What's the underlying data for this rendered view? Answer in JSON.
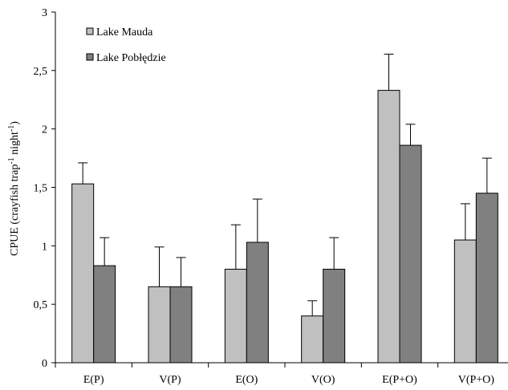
{
  "chart_data": {
    "type": "bar",
    "ylabel": {
      "prefix": "CPUE (crayfish trap",
      "sup1": "-1",
      "middle": " night",
      "sup2": "-1",
      "suffix": ")"
    },
    "ylim": [
      0,
      3
    ],
    "yticks": [
      0,
      0.5,
      1,
      1.5,
      2,
      2.5,
      3
    ],
    "ytick_labels": [
      "0",
      "0,5",
      "1",
      "1,5",
      "2",
      "2,5",
      "3"
    ],
    "categories": [
      "E(P)",
      "V(P)",
      "E(O)",
      "V(O)",
      "E(P+O)",
      "V(P+O)"
    ],
    "series": [
      {
        "name": "Lake Mauda",
        "color": "#c0c0c0",
        "values": [
          1.53,
          0.65,
          0.8,
          0.4,
          2.33,
          1.05
        ],
        "error_upper": [
          1.71,
          0.99,
          1.18,
          0.53,
          2.64,
          1.36
        ]
      },
      {
        "name": "Lake Pobłędzie",
        "color": "#808080",
        "values": [
          0.83,
          0.65,
          1.03,
          0.8,
          1.86,
          1.45
        ],
        "error_upper": [
          1.07,
          0.9,
          1.4,
          1.07,
          2.04,
          1.75
        ]
      }
    ],
    "legend_position": "top-left",
    "grid": false
  }
}
